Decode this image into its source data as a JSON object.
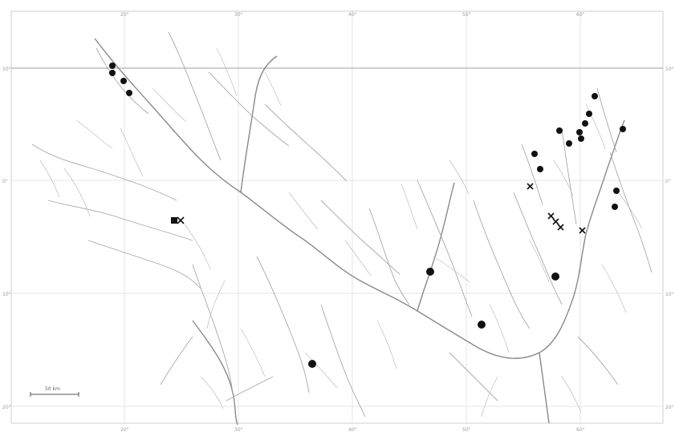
{
  "map": {
    "scale_bar_label": "50 km",
    "graticule_top_labels": [
      "20°",
      "30°",
      "40°",
      "50°",
      "60°"
    ],
    "graticule_bottom_labels": [
      "20°",
      "30°",
      "40°",
      "50°",
      "60°"
    ],
    "graticule_left_labels": [
      "10°",
      "0°",
      "10°",
      "20°"
    ],
    "graticule_right_labels": [
      "10°",
      "0°",
      "10°",
      "20°"
    ],
    "marker_color": "#111111",
    "river_color": "#a8a8a8",
    "marker_types": [
      "filled-circle-record",
      "filled-square-record",
      "cross-record"
    ]
  }
}
